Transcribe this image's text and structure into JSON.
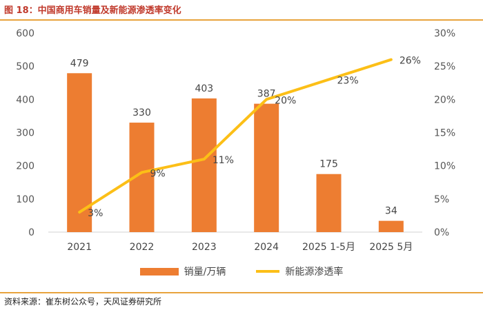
{
  "title": "图 18：中国商用车销量及新能源渗透率变化",
  "source": "资料来源：崔东树公众号，天风证券研究所",
  "colors": {
    "bar": "#ed7d31",
    "line": "#fcbf17",
    "accent": "#c0392b",
    "rule": "#e8a33c"
  },
  "chart_data": {
    "type": "bar+line",
    "categories": [
      "2021",
      "2022",
      "2023",
      "2024",
      "2025 1-5月",
      "2025 5月"
    ],
    "series": [
      {
        "name": "销量/万辆",
        "type": "bar",
        "axis": "left",
        "values": [
          479,
          330,
          403,
          387,
          175,
          34
        ],
        "labels": [
          "479",
          "330",
          "403",
          "387",
          "175",
          "34"
        ]
      },
      {
        "name": "新能源渗透率",
        "type": "line",
        "axis": "right",
        "values": [
          3,
          9,
          11,
          20,
          23,
          26
        ],
        "labels": [
          "3%",
          "9%",
          "11%",
          "20%",
          "23%",
          "26%"
        ]
      }
    ],
    "y_left": {
      "min": 0,
      "max": 600,
      "ticks": [
        "0",
        "100",
        "200",
        "300",
        "400",
        "500",
        "600"
      ]
    },
    "y_right": {
      "min": 0,
      "max": 30,
      "ticks": [
        "0%",
        "5%",
        "10%",
        "15%",
        "20%",
        "25%",
        "30%"
      ]
    },
    "legend": [
      "销量/万辆",
      "新能源渗透率"
    ]
  }
}
